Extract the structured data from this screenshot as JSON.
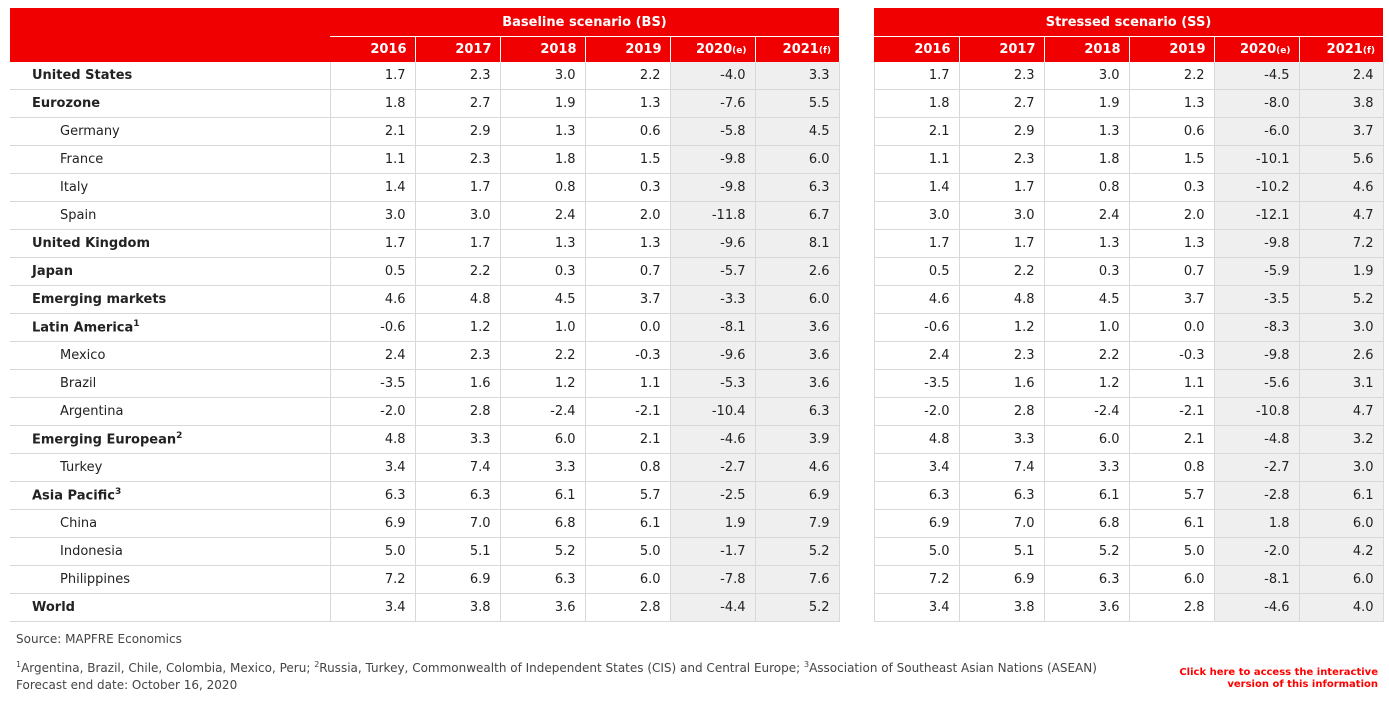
{
  "headers": {
    "baseline": "Baseline scenario (BS)",
    "stressed": "Stressed scenario (SS)"
  },
  "years": [
    {
      "label": "2016",
      "suffix": ""
    },
    {
      "label": "2017",
      "suffix": ""
    },
    {
      "label": "2018",
      "suffix": ""
    },
    {
      "label": "2019",
      "suffix": ""
    },
    {
      "label": "2020",
      "suffix": "(e)"
    },
    {
      "label": "2021",
      "suffix": "(f)"
    }
  ],
  "rows": [
    {
      "name": "United States",
      "sup": "",
      "level": "main",
      "bs": [
        "1.7",
        "2.3",
        "3.0",
        "2.2",
        "-4.0",
        "3.3"
      ],
      "ss": [
        "1.7",
        "2.3",
        "3.0",
        "2.2",
        "-4.5",
        "2.4"
      ]
    },
    {
      "name": "Eurozone",
      "sup": "",
      "level": "main",
      "bs": [
        "1.8",
        "2.7",
        "1.9",
        "1.3",
        "-7.6",
        "5.5"
      ],
      "ss": [
        "1.8",
        "2.7",
        "1.9",
        "1.3",
        "-8.0",
        "3.8"
      ]
    },
    {
      "name": "Germany",
      "sup": "",
      "level": "sub",
      "bs": [
        "2.1",
        "2.9",
        "1.3",
        "0.6",
        "-5.8",
        "4.5"
      ],
      "ss": [
        "2.1",
        "2.9",
        "1.3",
        "0.6",
        "-6.0",
        "3.7"
      ]
    },
    {
      "name": "France",
      "sup": "",
      "level": "sub",
      "bs": [
        "1.1",
        "2.3",
        "1.8",
        "1.5",
        "-9.8",
        "6.0"
      ],
      "ss": [
        "1.1",
        "2.3",
        "1.8",
        "1.5",
        "-10.1",
        "5.6"
      ]
    },
    {
      "name": "Italy",
      "sup": "",
      "level": "sub",
      "bs": [
        "1.4",
        "1.7",
        "0.8",
        "0.3",
        "-9.8",
        "6.3"
      ],
      "ss": [
        "1.4",
        "1.7",
        "0.8",
        "0.3",
        "-10.2",
        "4.6"
      ]
    },
    {
      "name": "Spain",
      "sup": "",
      "level": "sub",
      "bs": [
        "3.0",
        "3.0",
        "2.4",
        "2.0",
        "-11.8",
        "6.7"
      ],
      "ss": [
        "3.0",
        "3.0",
        "2.4",
        "2.0",
        "-12.1",
        "4.7"
      ]
    },
    {
      "name": "United Kingdom",
      "sup": "",
      "level": "main",
      "bs": [
        "1.7",
        "1.7",
        "1.3",
        "1.3",
        "-9.6",
        "8.1"
      ],
      "ss": [
        "1.7",
        "1.7",
        "1.3",
        "1.3",
        "-9.8",
        "7.2"
      ]
    },
    {
      "name": "Japan",
      "sup": "",
      "level": "main",
      "bs": [
        "0.5",
        "2.2",
        "0.3",
        "0.7",
        "-5.7",
        "2.6"
      ],
      "ss": [
        "0.5",
        "2.2",
        "0.3",
        "0.7",
        "-5.9",
        "1.9"
      ]
    },
    {
      "name": "Emerging markets",
      "sup": "",
      "level": "main",
      "bs": [
        "4.6",
        "4.8",
        "4.5",
        "3.7",
        "-3.3",
        "6.0"
      ],
      "ss": [
        "4.6",
        "4.8",
        "4.5",
        "3.7",
        "-3.5",
        "5.2"
      ]
    },
    {
      "name": "Latin America",
      "sup": "1",
      "level": "main",
      "bs": [
        "-0.6",
        "1.2",
        "1.0",
        "0.0",
        "-8.1",
        "3.6"
      ],
      "ss": [
        "-0.6",
        "1.2",
        "1.0",
        "0.0",
        "-8.3",
        "3.0"
      ]
    },
    {
      "name": "Mexico",
      "sup": "",
      "level": "sub",
      "bs": [
        "2.4",
        "2.3",
        "2.2",
        "-0.3",
        "-9.6",
        "3.6"
      ],
      "ss": [
        "2.4",
        "2.3",
        "2.2",
        "-0.3",
        "-9.8",
        "2.6"
      ]
    },
    {
      "name": "Brazil",
      "sup": "",
      "level": "sub",
      "bs": [
        "-3.5",
        "1.6",
        "1.2",
        "1.1",
        "-5.3",
        "3.6"
      ],
      "ss": [
        "-3.5",
        "1.6",
        "1.2",
        "1.1",
        "-5.6",
        "3.1"
      ]
    },
    {
      "name": "Argentina",
      "sup": "",
      "level": "sub",
      "bs": [
        "-2.0",
        "2.8",
        "-2.4",
        "-2.1",
        "-10.4",
        "6.3"
      ],
      "ss": [
        "-2.0",
        "2.8",
        "-2.4",
        "-2.1",
        "-10.8",
        "4.7"
      ]
    },
    {
      "name": "Emerging European",
      "sup": "2",
      "level": "main",
      "bs": [
        "4.8",
        "3.3",
        "6.0",
        "2.1",
        "-4.6",
        "3.9"
      ],
      "ss": [
        "4.8",
        "3.3",
        "6.0",
        "2.1",
        "-4.8",
        "3.2"
      ]
    },
    {
      "name": "Turkey",
      "sup": "",
      "level": "sub",
      "bs": [
        "3.4",
        "7.4",
        "3.3",
        "0.8",
        "-2.7",
        "4.6"
      ],
      "ss": [
        "3.4",
        "7.4",
        "3.3",
        "0.8",
        "-2.7",
        "3.0"
      ]
    },
    {
      "name": "Asia Pacific",
      "sup": "3",
      "level": "main",
      "bs": [
        "6.3",
        "6.3",
        "6.1",
        "5.7",
        "-2.5",
        "6.9"
      ],
      "ss": [
        "6.3",
        "6.3",
        "6.1",
        "5.7",
        "-2.8",
        "6.1"
      ]
    },
    {
      "name": "China",
      "sup": "",
      "level": "sub",
      "bs": [
        "6.9",
        "7.0",
        "6.8",
        "6.1",
        "1.9",
        "7.9"
      ],
      "ss": [
        "6.9",
        "7.0",
        "6.8",
        "6.1",
        "1.8",
        "6.0"
      ]
    },
    {
      "name": "Indonesia",
      "sup": "",
      "level": "sub",
      "bs": [
        "5.0",
        "5.1",
        "5.2",
        "5.0",
        "-1.7",
        "5.2"
      ],
      "ss": [
        "5.0",
        "5.1",
        "5.2",
        "5.0",
        "-2.0",
        "4.2"
      ]
    },
    {
      "name": "Philippines",
      "sup": "",
      "level": "sub",
      "bs": [
        "7.2",
        "6.9",
        "6.3",
        "6.0",
        "-7.8",
        "7.6"
      ],
      "ss": [
        "7.2",
        "6.9",
        "6.3",
        "6.0",
        "-8.1",
        "6.0"
      ]
    },
    {
      "name": "World",
      "sup": "",
      "level": "main",
      "bs": [
        "3.4",
        "3.8",
        "3.6",
        "2.8",
        "-4.4",
        "5.2"
      ],
      "ss": [
        "3.4",
        "3.8",
        "3.6",
        "2.8",
        "-4.6",
        "4.0"
      ]
    }
  ],
  "footer": {
    "source": "Source: MAPFRE Economics",
    "notes": {
      "n1_mark": "1",
      "n1": "Argentina, Brazil, Chile, Colombia, Mexico, Peru; ",
      "n2_mark": "2",
      "n2": "Russia, Turkey, Commonwealth of Independent States (CIS) and  Central Europe; ",
      "n3_mark": "3",
      "n3": "Association of Southeast Asian Nations (ASEAN)"
    },
    "date": "Forecast end date: October 16, 2020",
    "link_line1": "Click here to access the interactive",
    "link_line2": "version of this information"
  },
  "colors": {
    "accent": "#f00000",
    "shade": "#efefef",
    "link": "#ff0000"
  }
}
